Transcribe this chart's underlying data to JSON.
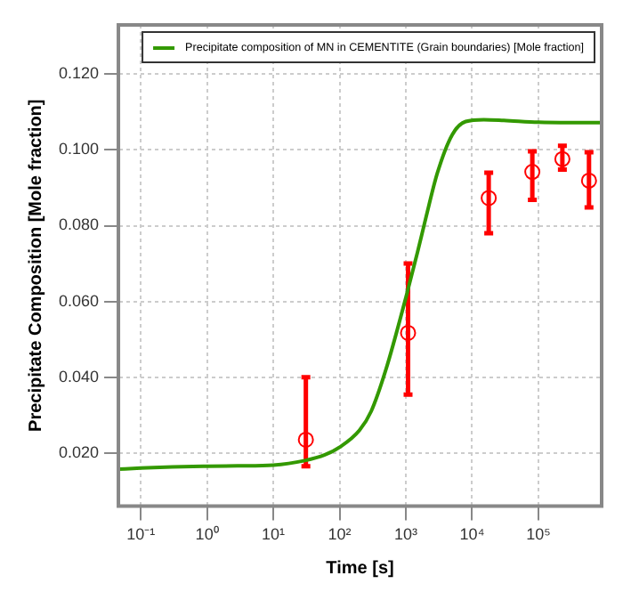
{
  "chart_data": {
    "type": "line",
    "xlabel": "Time [s]",
    "ylabel": "Precipitate Composition [Mole fraction]",
    "log": "x",
    "xlim": [
      0.046,
      900000
    ],
    "ylim": [
      0.006,
      0.133
    ],
    "xticks": [
      {
        "value": 0.1,
        "label": "10⁻¹"
      },
      {
        "value": 1,
        "label": "10⁰"
      },
      {
        "value": 10,
        "label": "10¹"
      },
      {
        "value": 100,
        "label": "10²"
      },
      {
        "value": 1000,
        "label": "10³"
      },
      {
        "value": 10000,
        "label": "10⁴"
      },
      {
        "value": 100000,
        "label": "10⁵"
      }
    ],
    "yticks": [
      {
        "value": 0.02,
        "label": "0.020"
      },
      {
        "value": 0.04,
        "label": "0.040"
      },
      {
        "value": 0.06,
        "label": "0.060"
      },
      {
        "value": 0.08,
        "label": "0.080"
      },
      {
        "value": 0.1,
        "label": "0.100"
      },
      {
        "value": 0.12,
        "label": "0.120"
      }
    ],
    "grid": true,
    "legend": "top right",
    "series": [
      {
        "name": "Precipitate composition of MN in CEMENTITE (Grain boundaries) [Mole fraction]",
        "type": "line",
        "color": "#339900",
        "marker": "none",
        "x": [
          0.046,
          0.1,
          0.3,
          1,
          3,
          10,
          30,
          60,
          100,
          200,
          300,
          500,
          1000,
          1500,
          2000,
          3000,
          5000,
          8000,
          15000,
          30000,
          100000,
          300000,
          900000
        ],
        "values": [
          0.0157,
          0.016,
          0.0163,
          0.0165,
          0.0166,
          0.0168,
          0.018,
          0.0195,
          0.0215,
          0.026,
          0.031,
          0.042,
          0.061,
          0.073,
          0.082,
          0.094,
          0.104,
          0.1075,
          0.108,
          0.1078,
          0.1073,
          0.1072,
          0.1072
        ]
      },
      {
        "type": "scatter",
        "color": "#ff0000",
        "marker": "circle",
        "x": [
          31,
          1080,
          17800,
          81000,
          230000,
          580000
        ],
        "values": [
          0.0235,
          0.0517,
          0.0873,
          0.0942,
          0.0976,
          0.0919
        ],
        "errors": [
          [
            0.0165,
            0.04
          ],
          [
            0.0354,
            0.07
          ],
          [
            0.078,
            0.094
          ],
          [
            0.0868,
            0.0996
          ],
          [
            0.0948,
            0.1011
          ],
          [
            0.0848,
            0.0994
          ]
        ]
      }
    ]
  }
}
